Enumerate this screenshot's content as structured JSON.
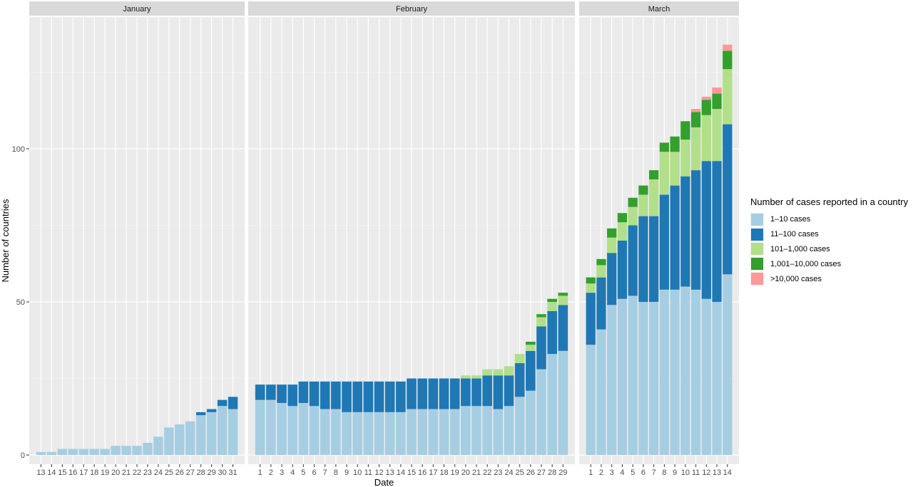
{
  "chart_data": {
    "type": "bar",
    "stacked": true,
    "xlabel": "Date",
    "ylabel": "Number of countries",
    "ylim": [
      -3,
      143
    ],
    "y_ticks": [
      0,
      50,
      100
    ],
    "grid": true,
    "legend_placement": "right",
    "legend_title": "Number of cases reported in a country",
    "series": [
      {
        "name": "1–10 cases",
        "color": "#a6cee3"
      },
      {
        "name": "11–100 cases",
        "color": "#1f78b4"
      },
      {
        "name": "101–1,000 cases",
        "color": "#b2df8a"
      },
      {
        "name": "1,001–10,000 cases",
        "color": "#33a02c"
      },
      {
        "name": ">10,000 cases",
        "color": "#fb9a99"
      }
    ],
    "facets": [
      {
        "label": "January",
        "dates": [
          "13",
          "14",
          "15",
          "16",
          "17",
          "18",
          "19",
          "20",
          "21",
          "22",
          "23",
          "24",
          "25",
          "26",
          "27",
          "28",
          "29",
          "30",
          "31"
        ],
        "values": [
          [
            1,
            0,
            0,
            0,
            0
          ],
          [
            1,
            0,
            0,
            0,
            0
          ],
          [
            2,
            0,
            0,
            0,
            0
          ],
          [
            2,
            0,
            0,
            0,
            0
          ],
          [
            2,
            0,
            0,
            0,
            0
          ],
          [
            2,
            0,
            0,
            0,
            0
          ],
          [
            2,
            0,
            0,
            0,
            0
          ],
          [
            3,
            0,
            0,
            0,
            0
          ],
          [
            3,
            0,
            0,
            0,
            0
          ],
          [
            3,
            0,
            0,
            0,
            0
          ],
          [
            4,
            0,
            0,
            0,
            0
          ],
          [
            6,
            0,
            0,
            0,
            0
          ],
          [
            9,
            0,
            0,
            0,
            0
          ],
          [
            10,
            0,
            0,
            0,
            0
          ],
          [
            11,
            0,
            0,
            0,
            0
          ],
          [
            13,
            1,
            0,
            0,
            0
          ],
          [
            14,
            1,
            0,
            0,
            0
          ],
          [
            16,
            2,
            0,
            0,
            0
          ],
          [
            15,
            4,
            0,
            0,
            0
          ]
        ]
      },
      {
        "label": "February",
        "dates": [
          "1",
          "2",
          "3",
          "4",
          "5",
          "6",
          "7",
          "8",
          "9",
          "10",
          "11",
          "12",
          "13",
          "14",
          "15",
          "16",
          "17",
          "18",
          "19",
          "20",
          "21",
          "22",
          "23",
          "24",
          "25",
          "26",
          "27",
          "28",
          "29"
        ],
        "values": [
          [
            18,
            5,
            0,
            0,
            0
          ],
          [
            18,
            5,
            0,
            0,
            0
          ],
          [
            17,
            6,
            0,
            0,
            0
          ],
          [
            16,
            7,
            0,
            0,
            0
          ],
          [
            17,
            7,
            0,
            0,
            0
          ],
          [
            16,
            8,
            0,
            0,
            0
          ],
          [
            15,
            9,
            0,
            0,
            0
          ],
          [
            15,
            9,
            0,
            0,
            0
          ],
          [
            14,
            10,
            0,
            0,
            0
          ],
          [
            14,
            10,
            0,
            0,
            0
          ],
          [
            14,
            10,
            0,
            0,
            0
          ],
          [
            14,
            10,
            0,
            0,
            0
          ],
          [
            14,
            10,
            0,
            0,
            0
          ],
          [
            14,
            10,
            0,
            0,
            0
          ],
          [
            15,
            10,
            0,
            0,
            0
          ],
          [
            15,
            10,
            0,
            0,
            0
          ],
          [
            15,
            10,
            0,
            0,
            0
          ],
          [
            15,
            10,
            0,
            0,
            0
          ],
          [
            15,
            10,
            0,
            0,
            0
          ],
          [
            16,
            9,
            1,
            0,
            0
          ],
          [
            16,
            9,
            1,
            0,
            0
          ],
          [
            16,
            10,
            2,
            0,
            0
          ],
          [
            15,
            11,
            2,
            0,
            0
          ],
          [
            16,
            10,
            3,
            0,
            0
          ],
          [
            19,
            11,
            3,
            0,
            0
          ],
          [
            21,
            13,
            2,
            1,
            0
          ],
          [
            28,
            14,
            3,
            1,
            0
          ],
          [
            33,
            14,
            3,
            1,
            0
          ],
          [
            34,
            15,
            3,
            1,
            0
          ]
        ]
      },
      {
        "label": "March",
        "dates": [
          "1",
          "2",
          "3",
          "4",
          "5",
          "6",
          "7",
          "8",
          "9",
          "10",
          "11",
          "12",
          "13",
          "14"
        ],
        "values": [
          [
            36,
            17,
            3,
            2,
            0
          ],
          [
            41,
            17,
            4,
            2,
            0
          ],
          [
            49,
            17,
            5,
            3,
            0
          ],
          [
            51,
            19,
            6,
            3,
            0
          ],
          [
            52,
            23,
            6,
            3,
            0
          ],
          [
            50,
            28,
            7,
            3,
            0
          ],
          [
            50,
            28,
            12,
            3,
            0
          ],
          [
            54,
            31,
            14,
            3,
            0
          ],
          [
            54,
            34,
            11,
            5,
            0
          ],
          [
            55,
            36,
            12,
            6,
            0
          ],
          [
            54,
            39,
            14,
            5,
            1
          ],
          [
            51,
            45,
            15,
            5,
            1
          ],
          [
            50,
            46,
            17,
            5,
            2
          ],
          [
            59,
            49,
            18,
            6,
            2
          ]
        ]
      }
    ]
  }
}
